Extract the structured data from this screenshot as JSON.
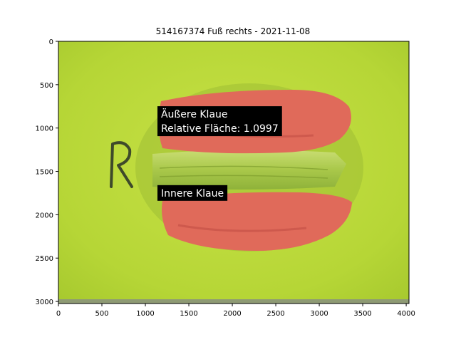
{
  "chart_data": {
    "type": "image",
    "title": "514167374 Fuß rechts - 2021-11-08",
    "xlim": [
      0,
      4032
    ],
    "ylim": [
      3024,
      0
    ],
    "x_ticks": [
      0,
      500,
      1000,
      1500,
      2000,
      2500,
      3000,
      3500,
      4000
    ],
    "y_ticks": [
      0,
      500,
      1000,
      1500,
      2000,
      2500,
      3000
    ],
    "annotations": [
      {
        "name": "outer-claw",
        "lines": [
          "Äußere Klaue",
          "Relative Fläche: 1.0997"
        ],
        "x": 1180,
        "y": 880
      },
      {
        "name": "inner-claw",
        "lines": [
          "Innere Klaue"
        ],
        "x": 1180,
        "y": 1790
      }
    ],
    "regions": [
      {
        "name": "outer-claw-region",
        "color": "#e06a5a"
      },
      {
        "name": "inner-claw-region",
        "color": "#e06a5a"
      }
    ],
    "colors": {
      "background": "#b9d93a",
      "claw_overlay": "#e06a5a",
      "annotation_box": "#000000"
    }
  }
}
